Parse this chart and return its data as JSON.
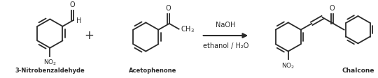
{
  "line_color": "#2a2a2a",
  "line_width": 1.3,
  "label_color": "#1a1a1a",
  "reagent1": "NaOH",
  "reagent2": "ethanol / H₂O",
  "label1": "3-Nitrobenzaldehyde",
  "label2": "Acetophenone",
  "label3": "Chalcone"
}
